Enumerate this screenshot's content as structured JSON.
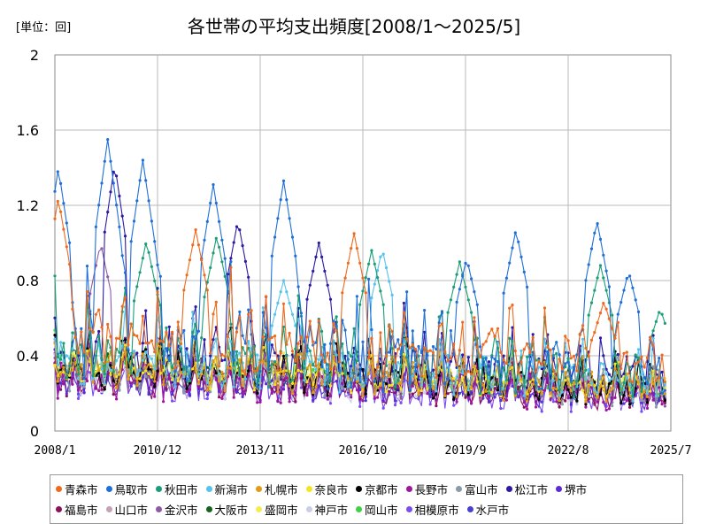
{
  "unit_label": "[単位：回]",
  "chart_data": {
    "type": "line",
    "title": "各世帯の平均支出頻度[2008/1～2025/5]",
    "ylim": [
      0,
      2
    ],
    "y_ticks": [
      "0",
      "0.4",
      "0.8",
      "1.2",
      "1.6",
      "2"
    ],
    "x_range": [
      "2008/1",
      "2025/7"
    ],
    "x_ticks": [
      "2008/1",
      "2010/12",
      "2013/11",
      "2016/10",
      "2019/9",
      "2022/8",
      "2025/7"
    ],
    "grid": true,
    "legend_position": "bottom",
    "series": [
      {
        "name": "青森市",
        "color": "#ef6a1d",
        "base": 0.46,
        "amp": 0.26,
        "peaks": [
          [
            2008.1,
            1.24
          ],
          [
            2012.0,
            1.07
          ],
          [
            2016.5,
            1.05
          ],
          [
            2020.4,
            0.55
          ],
          [
            2023.6,
            0.69
          ]
        ]
      },
      {
        "name": "鳥取市",
        "color": "#1f6fd8",
        "base": 0.42,
        "amp": 0.32,
        "peaks": [
          [
            2008.1,
            1.4
          ],
          [
            2009.5,
            1.55
          ],
          [
            2010.5,
            1.44
          ],
          [
            2012.5,
            1.31
          ],
          [
            2014.5,
            1.33
          ],
          [
            2019.7,
            0.92
          ],
          [
            2021.1,
            1.07
          ],
          [
            2023.4,
            1.12
          ],
          [
            2024.3,
            0.85
          ]
        ]
      },
      {
        "name": "秋田市",
        "color": "#1a9e77",
        "base": 0.38,
        "amp": 0.24,
        "peaks": [
          [
            2010.6,
            1.01
          ],
          [
            2012.6,
            1.04
          ],
          [
            2017.0,
            0.96
          ],
          [
            2019.5,
            0.9
          ],
          [
            2023.5,
            0.88
          ],
          [
            2025.2,
            0.65
          ]
        ]
      },
      {
        "name": "新潟市",
        "color": "#56c3ea",
        "base": 0.35,
        "amp": 0.22,
        "peaks": [
          [
            2017.3,
            0.97
          ],
          [
            2014.5,
            0.8
          ]
        ]
      },
      {
        "name": "札幌市",
        "color": "#e39b17",
        "base": 0.3,
        "amp": 0.16,
        "peaks": []
      },
      {
        "name": "奈良市",
        "color": "#f2e622",
        "base": 0.3,
        "amp": 0.12,
        "peaks": []
      },
      {
        "name": "京都市",
        "color": "#000000",
        "base": 0.3,
        "amp": 0.17,
        "peaks": []
      },
      {
        "name": "長野市",
        "color": "#9e159e",
        "base": 0.24,
        "amp": 0.16,
        "peaks": []
      },
      {
        "name": "富山市",
        "color": "#8a9aa6",
        "base": 0.28,
        "amp": 0.15,
        "peaks": []
      },
      {
        "name": "松江市",
        "color": "#2a1aa5",
        "base": 0.38,
        "amp": 0.25,
        "peaks": [
          [
            2009.7,
            1.42
          ],
          [
            2013.2,
            1.12
          ],
          [
            2015.5,
            1.0
          ]
        ]
      },
      {
        "name": "堺市",
        "color": "#5a2bd6",
        "base": 0.24,
        "amp": 0.13,
        "peaks": []
      },
      {
        "name": "福島市",
        "color": "#8c1159",
        "base": 0.23,
        "amp": 0.13,
        "peaks": []
      },
      {
        "name": "山口市",
        "color": "#c6a0b7",
        "base": 0.3,
        "amp": 0.13,
        "peaks": []
      },
      {
        "name": "金沢市",
        "color": "#8e5aa6",
        "base": 0.28,
        "amp": 0.15,
        "peaks": [
          [
            2009.3,
            1.0
          ]
        ]
      },
      {
        "name": "大阪市",
        "color": "#17621c",
        "base": 0.3,
        "amp": 0.14,
        "peaks": []
      },
      {
        "name": "盛岡市",
        "color": "#f5ec52",
        "base": 0.33,
        "amp": 0.12,
        "peaks": []
      },
      {
        "name": "神戸市",
        "color": "#c9cde6",
        "base": 0.24,
        "amp": 0.12,
        "peaks": []
      },
      {
        "name": "岡山市",
        "color": "#3fd144",
        "base": 0.3,
        "amp": 0.15,
        "peaks": []
      },
      {
        "name": "相模原市",
        "color": "#7b4df0",
        "base": 0.22,
        "amp": 0.14,
        "peaks": []
      },
      {
        "name": "水戸市",
        "color": "#4b3fd0",
        "base": 0.25,
        "amp": 0.13,
        "peaks": []
      }
    ]
  }
}
